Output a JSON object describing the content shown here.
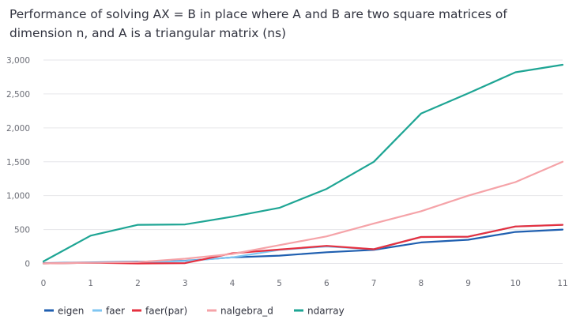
{
  "chart_data": {
    "type": "line",
    "title": "Performance of solving AX = B in place where A and B are two square matrices of dimension n, and A is a triangular matrix (ns)",
    "xlabel": "",
    "ylabel": "",
    "x": [
      0,
      1,
      2,
      3,
      4,
      5,
      6,
      7,
      8,
      9,
      10,
      11
    ],
    "x_ticks": [
      "0",
      "1",
      "2",
      "3",
      "4",
      "5",
      "6",
      "7",
      "8",
      "9",
      "10",
      "11"
    ],
    "ylim": [
      0,
      3000
    ],
    "y_ticks": [
      "0",
      "500",
      "1,000",
      "1,500",
      "2,000",
      "2,500",
      "3,000"
    ],
    "y_tick_values": [
      0,
      500,
      1000,
      1500,
      2000,
      2500,
      3000
    ],
    "grid": "horizontal",
    "legend_position": "bottom-left",
    "series": [
      {
        "name": "eigen",
        "color": "#1f5fb0",
        "values": [
          5,
          15,
          25,
          40,
          90,
          115,
          165,
          200,
          310,
          350,
          465,
          500
        ]
      },
      {
        "name": "faer",
        "color": "#7fc6f2",
        "values": [
          0,
          10,
          15,
          35,
          90,
          200,
          250,
          210,
          390,
          395,
          545,
          570
        ]
      },
      {
        "name": "faer(par)",
        "color": "#e5303f",
        "values": [
          0,
          10,
          0,
          5,
          150,
          205,
          260,
          210,
          390,
          395,
          545,
          570
        ]
      },
      {
        "name": "nalgebra_d",
        "color": "#f5a3a8",
        "values": [
          0,
          10,
          20,
          70,
          140,
          270,
          400,
          590,
          770,
          1000,
          1200,
          1500
        ]
      },
      {
        "name": "ndarray",
        "color": "#1ea594",
        "values": [
          30,
          410,
          570,
          575,
          690,
          820,
          1100,
          1500,
          2210,
          2510,
          2820,
          2930
        ]
      }
    ]
  }
}
